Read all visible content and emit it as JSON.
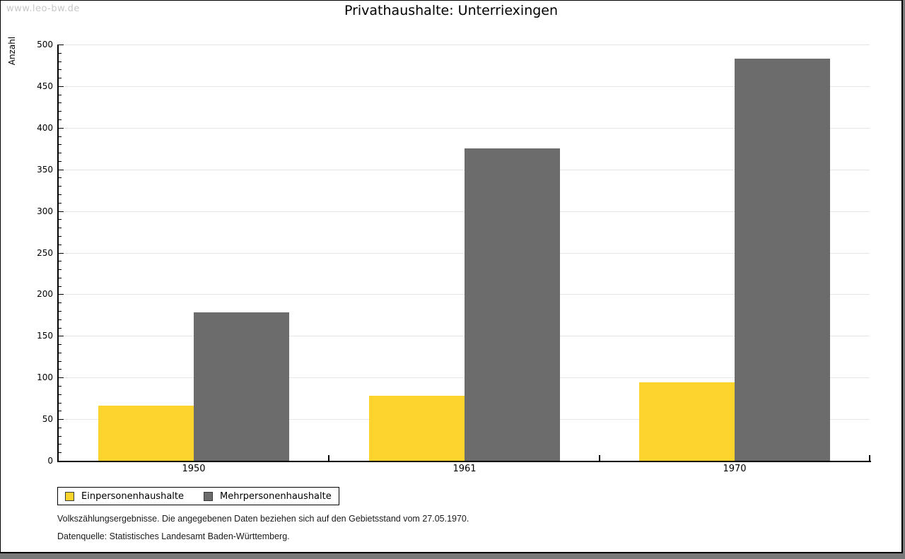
{
  "watermark": "www.leo-bw.de",
  "title": "Privathaushalte: Unterriexingen",
  "chart_data": {
    "type": "bar",
    "title": "Privathaushalte: Unterriexingen",
    "ylabel": "Anzahl",
    "xlabel": "",
    "ylim": [
      0,
      500
    ],
    "y_major_step": 50,
    "y_minor_step": 10,
    "grid": true,
    "legend_position": "bottom-left",
    "categories": [
      "1950",
      "1961",
      "1970"
    ],
    "series": [
      {
        "name": "Einpersonenhaushalte",
        "color": "#fcd42d",
        "values": [
          66,
          78,
          94
        ]
      },
      {
        "name": "Mehrpersonenhaushalte",
        "color": "#6c6c6c",
        "values": [
          178,
          375,
          483
        ]
      }
    ]
  },
  "footer": {
    "line1": "Volkszählungsergebnisse. Die angegebenen Daten beziehen sich auf den Gebietsstand vom 27.05.1970.",
    "line2": "Datenquelle: Statistisches Landesamt Baden-Württemberg."
  },
  "colors": {
    "gridline": "#e5e5e5",
    "axis": "#000000",
    "watermark_text": "#c8c8c8",
    "page_shadow": "#7a7a7a",
    "swatch_border": "#3a3a3a"
  }
}
